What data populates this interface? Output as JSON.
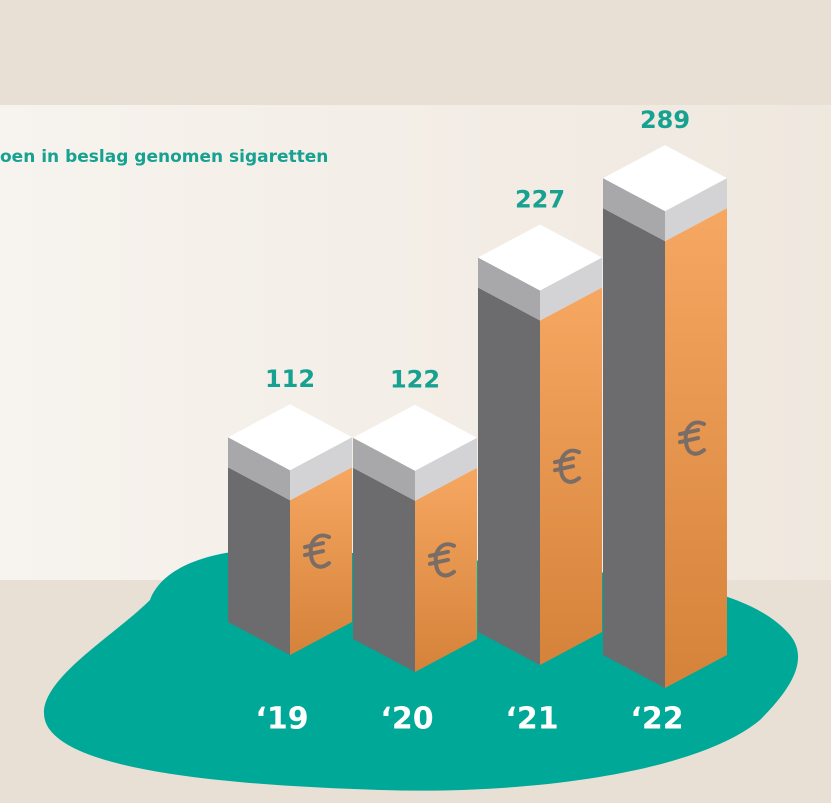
{
  "chart_data": {
    "type": "bar3d",
    "title": "oen in beslag genomen sigaretten",
    "categories": [
      "‘19",
      "‘20",
      "‘21",
      "‘22"
    ],
    "values": [
      112,
      122,
      227,
      289
    ],
    "color": "#f2a05a",
    "label_color": "#16a191"
  }
}
